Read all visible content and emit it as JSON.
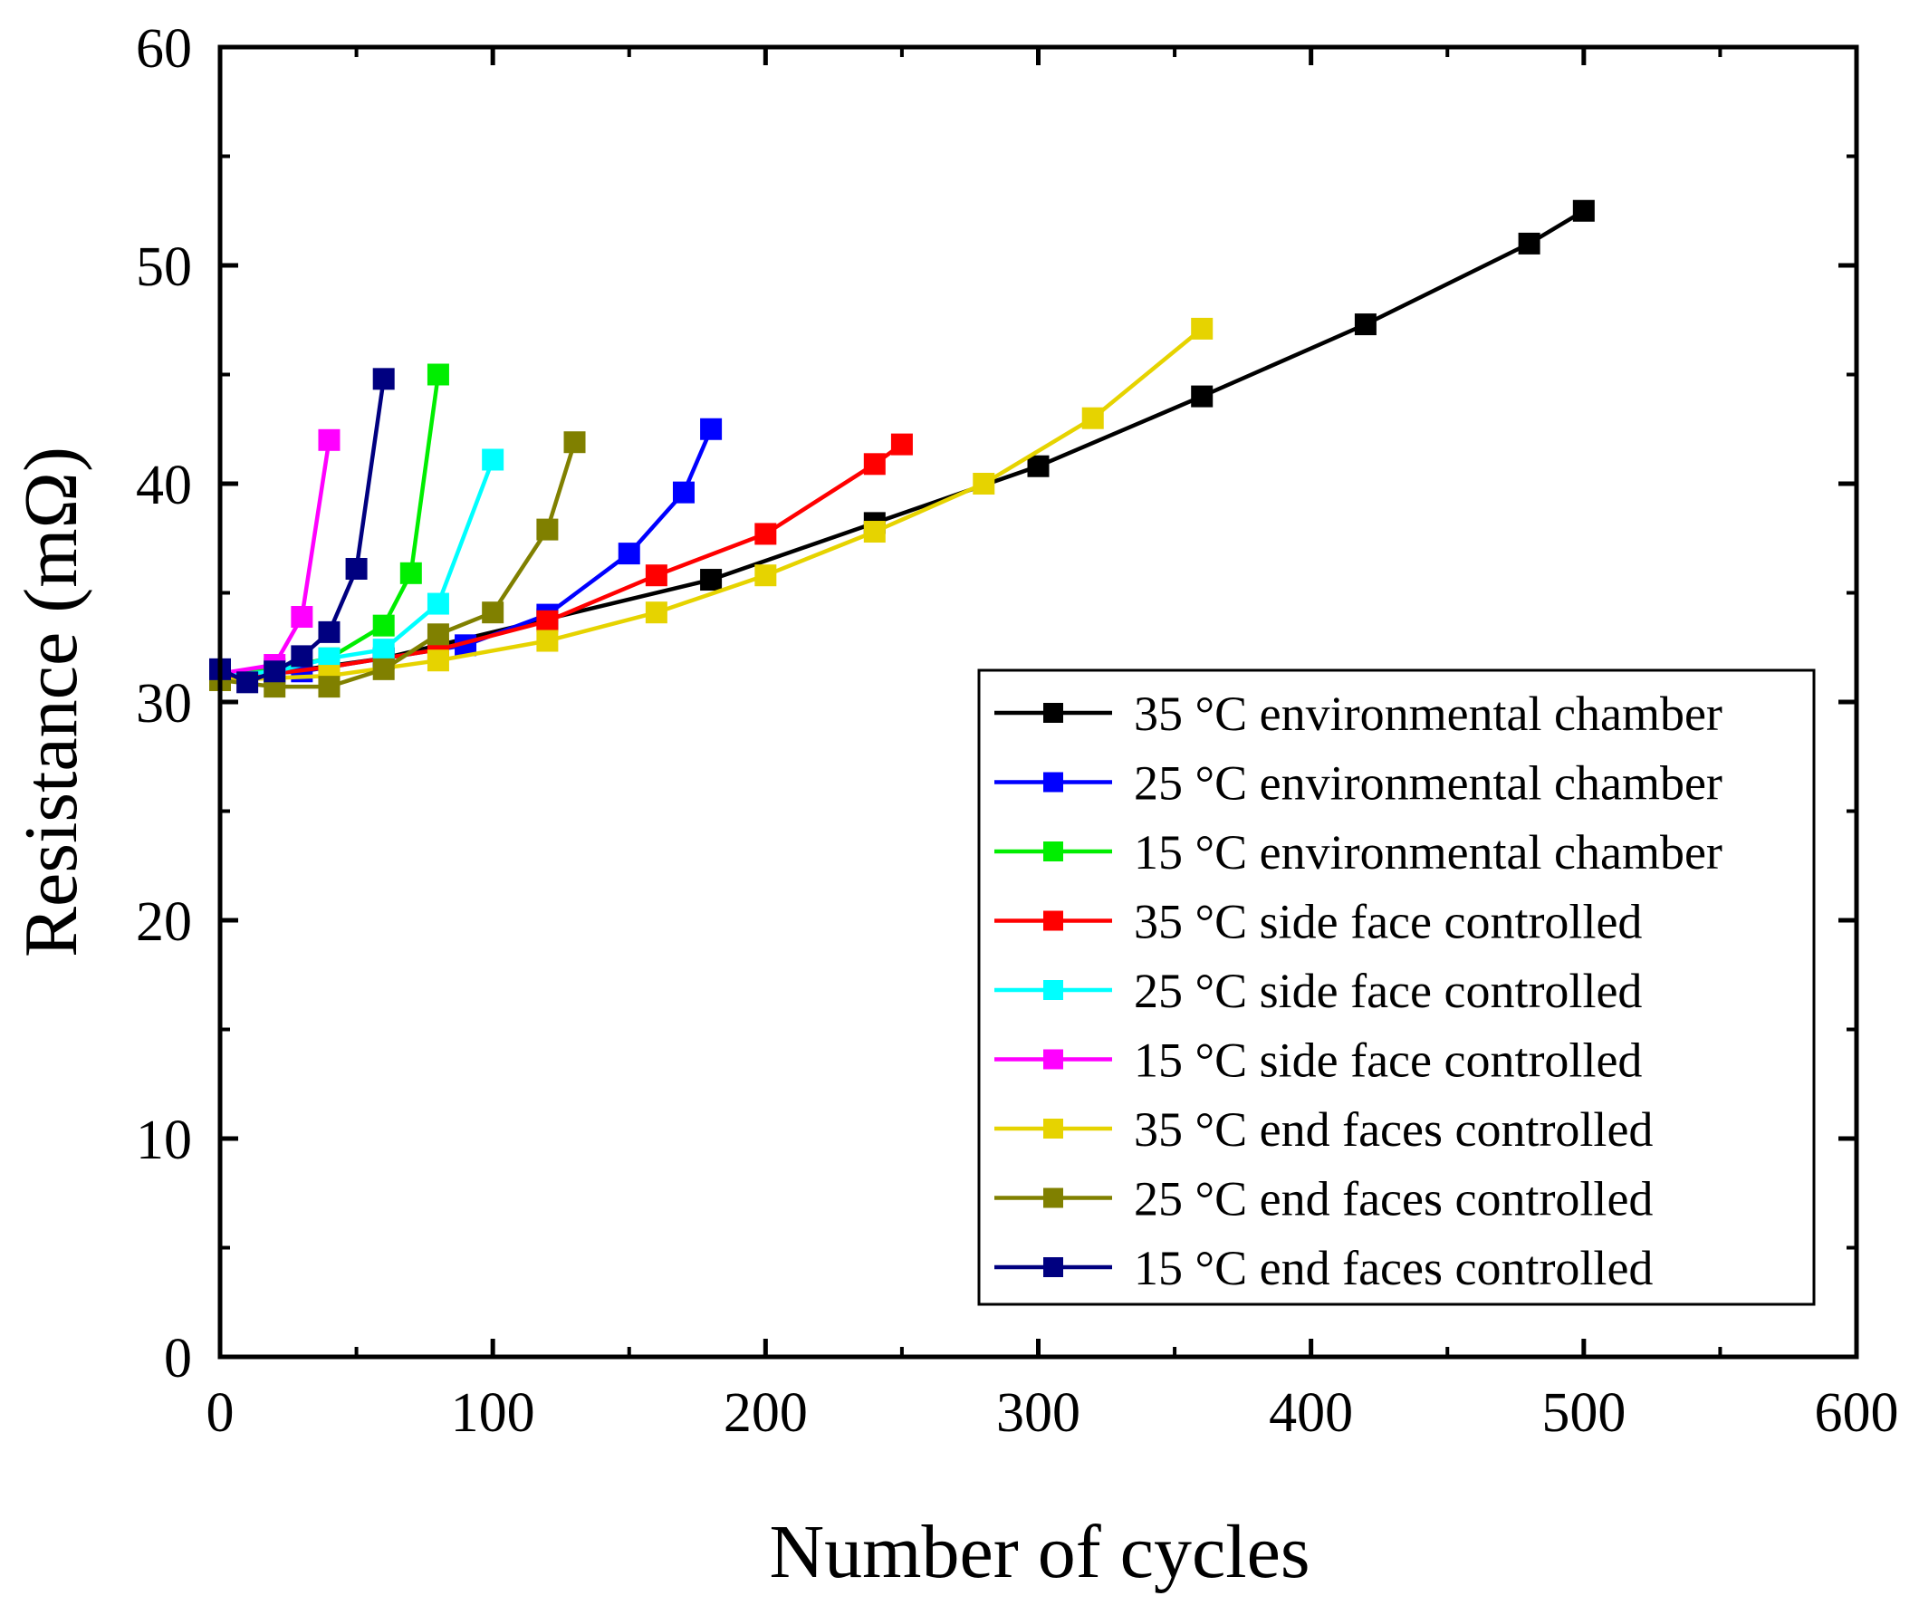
{
  "chart_data": {
    "type": "line",
    "title": "",
    "xlabel": "Number of cycles",
    "ylabel": "Resistance (mΩ)",
    "xlim": [
      0,
      600
    ],
    "ylim": [
      0,
      60
    ],
    "xticks": [
      0,
      100,
      200,
      300,
      400,
      500,
      600
    ],
    "yticks": [
      0,
      10,
      20,
      30,
      40,
      50,
      60
    ],
    "xtick_labels": [
      "0",
      "100",
      "200",
      "300",
      "400",
      "500",
      "600"
    ],
    "ytick_labels": [
      "0",
      "10",
      "20",
      "30",
      "40",
      "50",
      "60"
    ],
    "grid": false,
    "legend_position": "lower-right",
    "marker": "square",
    "series": [
      {
        "name": "35 °C environmental chamber",
        "color": "#000000",
        "x": [
          0,
          20,
          60,
          120,
          180,
          240,
          300,
          360,
          420,
          480,
          500
        ],
        "y": [
          31.0,
          31.3,
          32.0,
          33.8,
          35.6,
          38.2,
          40.8,
          44.0,
          47.3,
          51.0,
          52.5
        ]
      },
      {
        "name": "25 °C environmental chamber",
        "color": "#0000FF",
        "x": [
          0,
          30,
          60,
          90,
          120,
          150,
          170,
          180
        ],
        "y": [
          31.2,
          31.4,
          32.0,
          32.6,
          34.0,
          36.8,
          39.6,
          42.5
        ]
      },
      {
        "name": "15 °C environmental chamber",
        "color": "#00EE00",
        "x": [
          0,
          20,
          40,
          60,
          70,
          80
        ],
        "y": [
          31.2,
          31.5,
          32.0,
          33.5,
          35.9,
          45.0
        ]
      },
      {
        "name": "35 °C side face controlled",
        "color": "#FF0000",
        "x": [
          0,
          40,
          80,
          120,
          160,
          200,
          240,
          250
        ],
        "y": [
          31.0,
          31.6,
          32.4,
          33.7,
          35.8,
          37.7,
          40.9,
          41.8
        ]
      },
      {
        "name": "25 °C side face controlled",
        "color": "#00FFFF",
        "x": [
          0,
          20,
          40,
          60,
          80,
          100
        ],
        "y": [
          31.2,
          31.4,
          32.0,
          32.4,
          34.5,
          41.1
        ]
      },
      {
        "name": "15 °C side face controlled",
        "color": "#FF00FF",
        "x": [
          0,
          20,
          30,
          40
        ],
        "y": [
          31.3,
          31.7,
          33.9,
          42.0
        ]
      },
      {
        "name": "35 °C end faces controlled",
        "color": "#E6D300",
        "x": [
          0,
          40,
          80,
          120,
          160,
          200,
          240,
          280,
          320,
          360
        ],
        "y": [
          31.0,
          31.2,
          31.9,
          32.8,
          34.1,
          35.8,
          37.8,
          40.0,
          43.0,
          47.1
        ]
      },
      {
        "name": "25 °C end faces controlled",
        "color": "#808000",
        "x": [
          0,
          20,
          40,
          60,
          80,
          100,
          120,
          130
        ],
        "y": [
          31.0,
          30.7,
          30.7,
          31.5,
          33.1,
          34.1,
          37.9,
          41.9
        ]
      },
      {
        "name": "15 °C end faces controlled",
        "color": "#000080",
        "x": [
          0,
          10,
          20,
          30,
          40,
          50,
          60
        ],
        "y": [
          31.5,
          30.9,
          31.4,
          32.1,
          33.2,
          36.1,
          44.8
        ]
      }
    ]
  }
}
